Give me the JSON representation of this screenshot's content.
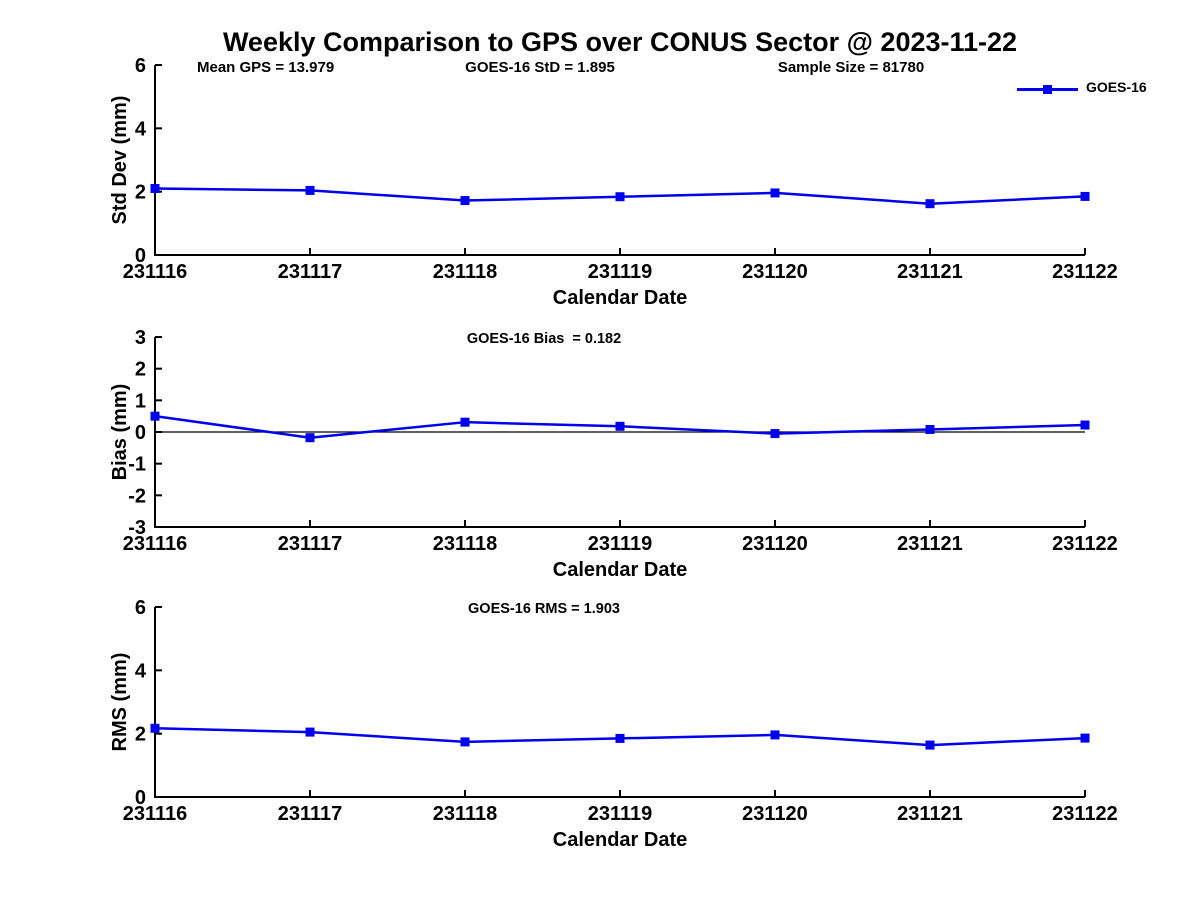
{
  "figure": {
    "title": "Weekly Comparison to GPS over CONUS Sector @ 2023-11-22",
    "stats": {
      "mean_gps": "Mean GPS = 13.979",
      "goes16_std": "GOES-16 StD = 1.895",
      "sample_size": "Sample Size = 81780"
    },
    "legend": {
      "label": "GOES-16",
      "position": "top-right"
    }
  },
  "colors": {
    "line": "#0000ee",
    "axis": "#000000",
    "text": "#000000",
    "background": "#ffffff"
  },
  "chart_data": [
    {
      "type": "line",
      "title": "",
      "xlabel": "Calendar Date",
      "ylabel": "Std Dev (mm)",
      "x": [
        "231116",
        "231117",
        "231118",
        "231119",
        "231120",
        "231121",
        "231122"
      ],
      "series": [
        {
          "name": "GOES-16",
          "values": [
            2.1,
            2.04,
            1.72,
            1.84,
            1.96,
            1.62,
            1.85
          ]
        }
      ],
      "ylim": [
        0,
        6
      ],
      "yticks": [
        0,
        2,
        4,
        6
      ],
      "zero_line": false,
      "grid": false,
      "marker": "square"
    },
    {
      "type": "line",
      "title": "GOES-16 Bias  = 0.182",
      "xlabel": "Calendar Date",
      "ylabel": "Bias (mm)",
      "x": [
        "231116",
        "231117",
        "231118",
        "231119",
        "231120",
        "231121",
        "231122"
      ],
      "series": [
        {
          "name": "GOES-16",
          "values": [
            0.5,
            -0.18,
            0.31,
            0.18,
            -0.05,
            0.08,
            0.22
          ]
        }
      ],
      "ylim": [
        -3,
        3
      ],
      "yticks": [
        -3,
        -2,
        -1,
        0,
        1,
        2,
        3
      ],
      "zero_line": true,
      "grid": false,
      "marker": "square"
    },
    {
      "type": "line",
      "title": "GOES-16 RMS = 1.903",
      "xlabel": "Calendar Date",
      "ylabel": "RMS (mm)",
      "x": [
        "231116",
        "231117",
        "231118",
        "231119",
        "231120",
        "231121",
        "231122"
      ],
      "series": [
        {
          "name": "GOES-16",
          "values": [
            2.17,
            2.05,
            1.74,
            1.85,
            1.96,
            1.64,
            1.86
          ]
        }
      ],
      "ylim": [
        0,
        6
      ],
      "yticks": [
        0,
        2,
        4,
        6
      ],
      "zero_line": false,
      "grid": false,
      "marker": "square"
    }
  ]
}
